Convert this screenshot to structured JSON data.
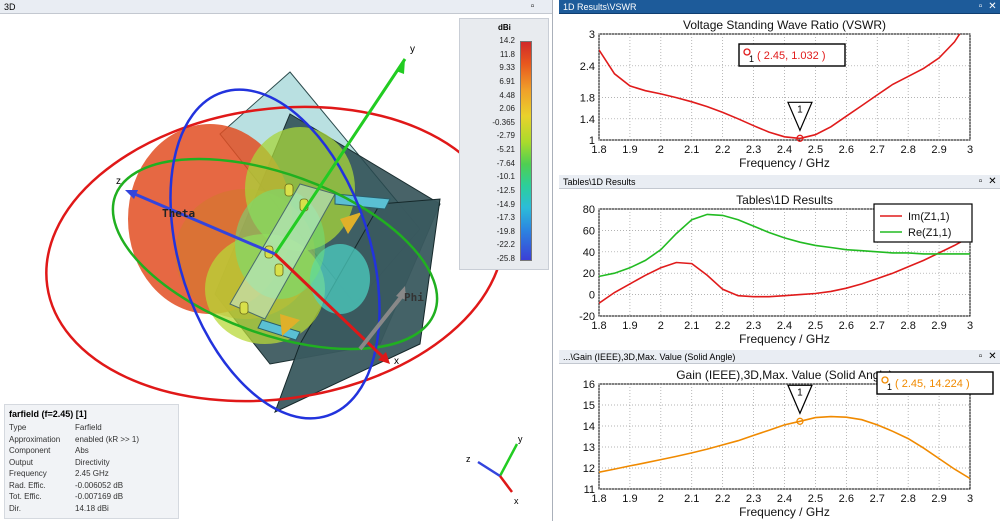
{
  "view3d": {
    "panel_title": "3D",
    "colorbar": {
      "unit": "dBi",
      "ticks": [
        "14.2",
        "11.8",
        "9.33",
        "6.91",
        "4.48",
        "2.06",
        "-0.365",
        "-2.79",
        "-5.21",
        "-7.64",
        "-10.1",
        "-12.5",
        "-14.9",
        "-17.3",
        "-19.8",
        "-22.2",
        "-25.8"
      ]
    },
    "axes": {
      "x": "x",
      "y": "y",
      "z": "z",
      "theta": "Theta",
      "phi": "Phi"
    },
    "info": {
      "title": "farfield (f=2.45) [1]",
      "rows": [
        {
          "k": "Type",
          "v": "Farfield"
        },
        {
          "k": "Approximation",
          "v": "enabled (kR >> 1)"
        },
        {
          "k": "Component",
          "v": "Abs"
        },
        {
          "k": "Output",
          "v": "Directivity"
        },
        {
          "k": "Frequency",
          "v": "2.45 GHz"
        },
        {
          "k": "Rad. Effic.",
          "v": "-0.006052 dB"
        },
        {
          "k": "Tot. Effic.",
          "v": "-0.007169 dB"
        },
        {
          "k": "Dir.",
          "v": "14.18 dBi"
        }
      ]
    },
    "triad": {
      "x": "x",
      "y": "y",
      "z": "z"
    }
  },
  "panels": {
    "vswr": {
      "title": "1D Results\\VSWR"
    },
    "tables": {
      "title": "Tables\\1D Results"
    },
    "gain": {
      "title": "...\\Gain (IEEE),3D,Max. Value (Solid Angle)"
    }
  },
  "chart_data": [
    {
      "id": "vswr",
      "type": "line",
      "title": "Voltage Standing Wave Ratio (VSWR)",
      "xlabel": "Frequency / GHz",
      "ylabel": "",
      "xlim": [
        1.8,
        3.0
      ],
      "ylim": [
        1,
        3
      ],
      "xticks": [
        1.8,
        1.9,
        2.0,
        2.1,
        2.2,
        2.3,
        2.4,
        2.5,
        2.6,
        2.7,
        2.8,
        2.9,
        3.0
      ],
      "xtick_labels": [
        "1.8",
        "1.9",
        "2",
        "2.1",
        "2.2",
        "2.3",
        "2.4",
        "2.5",
        "2.6",
        "2.7",
        "2.8",
        "2.9",
        "3"
      ],
      "yticks": [
        1,
        1.4,
        1.8,
        2.4,
        3
      ],
      "ytick_labels": [
        "1",
        "1.4",
        "1.8",
        "2.4",
        "3"
      ],
      "grid": true,
      "series": [
        {
          "color": "#e01b1b",
          "x": [
            1.8,
            1.85,
            1.9,
            1.95,
            2.0,
            2.05,
            2.1,
            2.15,
            2.2,
            2.25,
            2.3,
            2.35,
            2.4,
            2.45,
            2.5,
            2.55,
            2.6,
            2.65,
            2.7,
            2.75,
            2.8,
            2.85,
            2.9,
            2.95,
            3.0
          ],
          "y": [
            2.7,
            2.25,
            2.02,
            1.93,
            1.87,
            1.8,
            1.72,
            1.63,
            1.52,
            1.4,
            1.27,
            1.15,
            1.06,
            1.03,
            1.1,
            1.25,
            1.45,
            1.65,
            1.85,
            2.05,
            2.2,
            2.35,
            2.55,
            2.85,
            3.3
          ]
        }
      ],
      "marker": {
        "label": "1",
        "x": 2.45,
        "y": 1.032,
        "readout": "( 2.45, 1.032 )",
        "readout_index": "1",
        "color": "#e01b1b"
      }
    },
    {
      "id": "tables",
      "type": "line",
      "title": "Tables\\1D Results",
      "xlabel": "Frequency / GHz",
      "ylabel": "",
      "xlim": [
        1.8,
        3.0
      ],
      "ylim": [
        -20,
        80
      ],
      "xticks": [
        1.8,
        1.9,
        2.0,
        2.1,
        2.2,
        2.3,
        2.4,
        2.5,
        2.6,
        2.7,
        2.8,
        2.9,
        3.0
      ],
      "xtick_labels": [
        "1.8",
        "1.9",
        "2",
        "2.1",
        "2.2",
        "2.3",
        "2.4",
        "2.5",
        "2.6",
        "2.7",
        "2.8",
        "2.9",
        "3"
      ],
      "yticks": [
        -20,
        0,
        20,
        40,
        60,
        80
      ],
      "ytick_labels": [
        "-20",
        "0",
        "20",
        "40",
        "60",
        "80"
      ],
      "grid": true,
      "legend": "top-right",
      "series": [
        {
          "name": "Im(Z1,1)",
          "color": "#e01b1b",
          "x": [
            1.8,
            1.85,
            1.9,
            1.95,
            2.0,
            2.05,
            2.1,
            2.15,
            2.2,
            2.25,
            2.3,
            2.35,
            2.4,
            2.45,
            2.5,
            2.55,
            2.6,
            2.65,
            2.7,
            2.75,
            2.8,
            2.85,
            2.9,
            2.95,
            3.0
          ],
          "y": [
            -8,
            2,
            10,
            18,
            25,
            30,
            29,
            18,
            5,
            -1,
            -2,
            -2,
            -1,
            0,
            1,
            3,
            6,
            10,
            15,
            20,
            26,
            32,
            39,
            46,
            54
          ]
        },
        {
          "name": "Re(Z1,1)",
          "color": "#22bb22",
          "x": [
            1.8,
            1.85,
            1.9,
            1.95,
            2.0,
            2.05,
            2.1,
            2.15,
            2.2,
            2.25,
            2.3,
            2.35,
            2.4,
            2.45,
            2.5,
            2.55,
            2.6,
            2.65,
            2.7,
            2.75,
            2.8,
            2.85,
            2.9,
            2.95,
            3.0
          ],
          "y": [
            17,
            20,
            25,
            32,
            42,
            57,
            70,
            75,
            74,
            70,
            64,
            58,
            53,
            49,
            46,
            44,
            42,
            41,
            40,
            39,
            39,
            38,
            38,
            38,
            38
          ]
        }
      ]
    },
    {
      "id": "gain",
      "type": "line",
      "title": "Gain (IEEE),3D,Max. Value (Solid Angle)",
      "xlabel": "Frequency / GHz",
      "ylabel": "",
      "xlim": [
        1.8,
        3.0
      ],
      "ylim": [
        11,
        16
      ],
      "xticks": [
        1.8,
        1.9,
        2.0,
        2.1,
        2.2,
        2.3,
        2.4,
        2.5,
        2.6,
        2.7,
        2.8,
        2.9,
        3.0
      ],
      "xtick_labels": [
        "1.8",
        "1.9",
        "2",
        "2.1",
        "2.2",
        "2.3",
        "2.4",
        "2.5",
        "2.6",
        "2.7",
        "2.8",
        "2.9",
        "3"
      ],
      "yticks": [
        11,
        12,
        13,
        14,
        15,
        16
      ],
      "ytick_labels": [
        "11",
        "12",
        "13",
        "14",
        "15",
        "16"
      ],
      "grid": true,
      "series": [
        {
          "color": "#f08a00",
          "x": [
            1.8,
            1.85,
            1.9,
            1.95,
            2.0,
            2.05,
            2.1,
            2.15,
            2.2,
            2.25,
            2.3,
            2.35,
            2.4,
            2.45,
            2.5,
            2.55,
            2.6,
            2.65,
            2.7,
            2.75,
            2.8,
            2.85,
            2.9,
            2.95,
            3.0
          ],
          "y": [
            11.8,
            11.95,
            12.1,
            12.25,
            12.4,
            12.55,
            12.72,
            12.9,
            13.1,
            13.3,
            13.55,
            13.8,
            14.05,
            14.224,
            14.4,
            14.45,
            14.42,
            14.3,
            14.05,
            13.75,
            13.4,
            12.95,
            12.45,
            11.95,
            11.5
          ]
        }
      ],
      "marker": {
        "label": "1",
        "x": 2.45,
        "y": 14.224,
        "readout": "( 2.45, 14.224 )",
        "readout_index": "1",
        "color": "#f08a00"
      }
    }
  ]
}
